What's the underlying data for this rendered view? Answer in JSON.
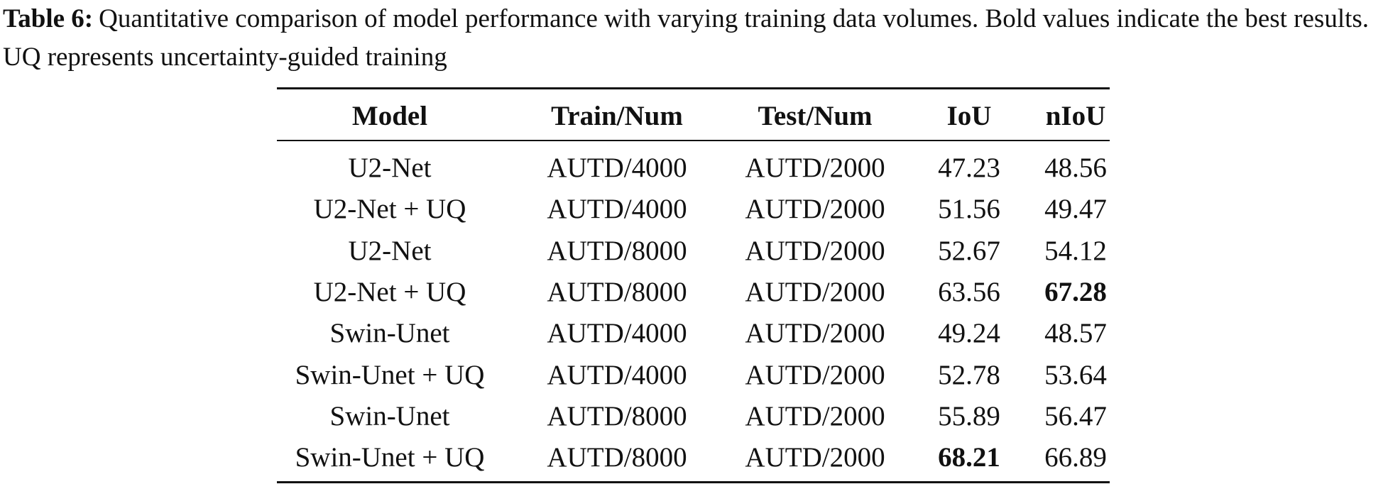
{
  "caption": {
    "label": "Table 6:",
    "text": "Quantitative comparison of model performance with varying training data volumes. Bold values indicate the best results. UQ represents uncertainty-guided training"
  },
  "table": {
    "header": [
      "Model",
      "Train/Num",
      "Test/Num",
      "IoU",
      "nIoU"
    ],
    "rows": [
      [
        "U2-Net",
        "AUTD/4000",
        "AUTD/2000",
        "47.23",
        "48.56"
      ],
      [
        "U2-Net + UQ",
        "AUTD/4000",
        "AUTD/2000",
        "51.56",
        "49.47"
      ],
      [
        "U2-Net",
        "AUTD/8000",
        "AUTD/2000",
        "52.67",
        "54.12"
      ],
      [
        "U2-Net + UQ",
        "AUTD/8000",
        "AUTD/2000",
        "63.56",
        "67.28"
      ],
      [
        "Swin-Unet",
        "AUTD/4000",
        "AUTD/2000",
        "49.24",
        "48.57"
      ],
      [
        "Swin-Unet + UQ",
        "AUTD/4000",
        "AUTD/2000",
        "52.78",
        "53.64"
      ],
      [
        "Swin-Unet",
        "AUTD/8000",
        "AUTD/2000",
        "55.89",
        "56.47"
      ],
      [
        "Swin-Unet + UQ",
        "AUTD/8000",
        "AUTD/2000",
        "68.21",
        "66.89"
      ]
    ]
  }
}
